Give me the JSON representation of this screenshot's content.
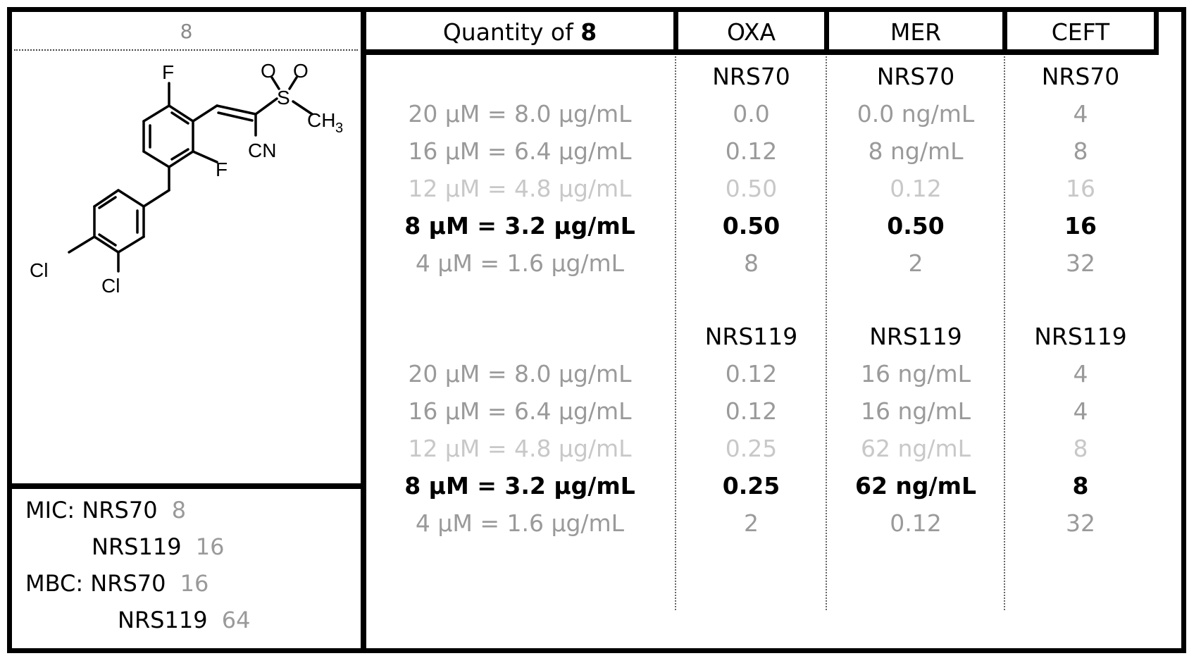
{
  "compound": {
    "label": "8",
    "atoms": {
      "f_top": "F",
      "f_mid": "F",
      "o1": "O",
      "o2": "O",
      "s": "S",
      "ch3": "CH",
      "ch3_sub": "3",
      "cn": "CN",
      "cl1": "Cl",
      "cl2": "Cl"
    }
  },
  "summary": {
    "mic_label": "MIC:",
    "mbc_label": "MBC:",
    "mic": [
      {
        "strain": "NRS70",
        "value": "8"
      },
      {
        "strain": "NRS119",
        "value": "16"
      }
    ],
    "mbc": [
      {
        "strain": "NRS70",
        "value": "16"
      },
      {
        "strain": "NRS119",
        "value": "64"
      }
    ]
  },
  "table": {
    "headers": {
      "quantity_prefix": "Quantity of ",
      "quantity_compound": "8",
      "oxa": "OXA",
      "mer": "MER",
      "ceft": "CEFT"
    },
    "groups": [
      {
        "strain": "NRS70",
        "rows": [
          {
            "quantity": "20 µM = 8.0 µg/mL",
            "oxa": "0.0",
            "mer": "0.0 ng/mL",
            "ceft": "4"
          },
          {
            "quantity": "16 µM = 6.4 µg/mL",
            "oxa": "0.12",
            "mer": "8 ng/mL",
            "ceft": "8"
          },
          {
            "quantity": "12 µM = 4.8 µg/mL",
            "oxa": "0.50",
            "mer": "0.12",
            "ceft": "16"
          },
          {
            "quantity": "8 µM = 3.2 µg/mL",
            "oxa": "0.50",
            "mer": "0.50",
            "ceft": "16"
          },
          {
            "quantity": "4 µM = 1.6 µg/mL",
            "oxa": "8",
            "mer": "2",
            "ceft": "32"
          }
        ]
      },
      {
        "strain": "NRS119",
        "rows": [
          {
            "quantity": "20 µM = 8.0 µg/mL",
            "oxa": "0.12",
            "mer": "16 ng/mL",
            "ceft": "4"
          },
          {
            "quantity": "16 µM = 6.4 µg/mL",
            "oxa": "0.12",
            "mer": "16 ng/mL",
            "ceft": "4"
          },
          {
            "quantity": "12 µM = 4.8 µg/mL",
            "oxa": "0.25",
            "mer": "62 ng/mL",
            "ceft": "8"
          },
          {
            "quantity": "8 µM = 3.2 µg/mL",
            "oxa": "0.25",
            "mer": "62 ng/mL",
            "ceft": "8"
          },
          {
            "quantity": "4 µM = 1.6 µg/mL",
            "oxa": "2",
            "mer": "0.12",
            "ceft": "32"
          }
        ]
      }
    ]
  }
}
